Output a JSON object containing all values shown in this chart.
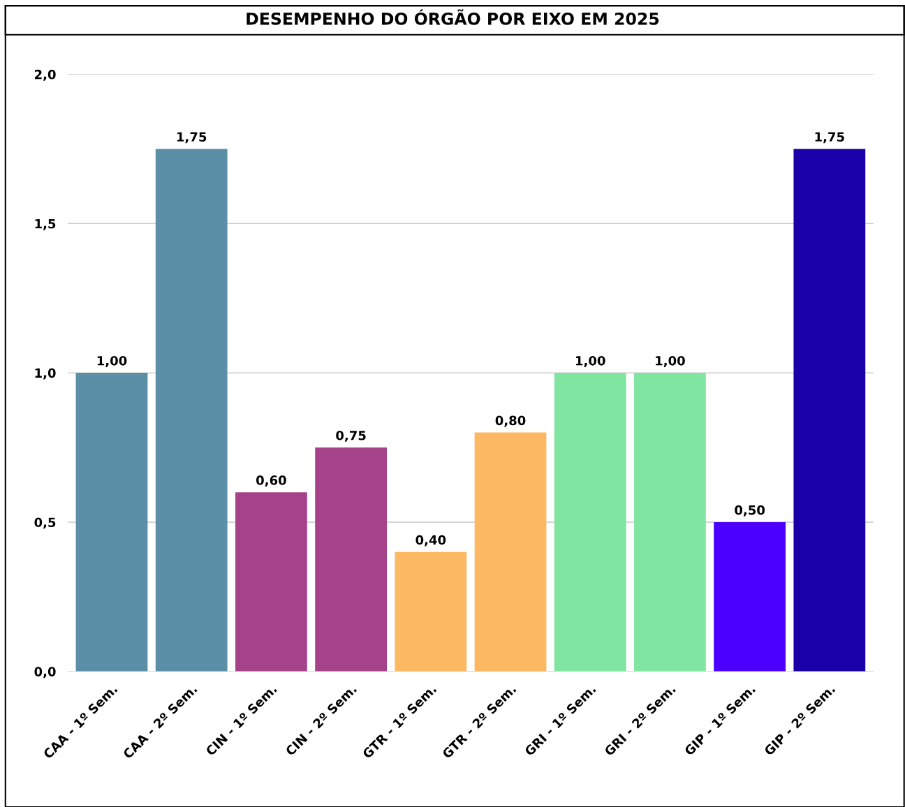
{
  "chart_data": {
    "type": "bar",
    "title": "DESEMPENHO DO ÓRGÃO POR EIXO EM 2025",
    "categories": [
      "CAA - 1º Sem.",
      "CAA - 2º Sem.",
      "CIN - 1º Sem.",
      "CIN - 2º Sem.",
      "GTR - 1º Sem.",
      "GTR - 2º Sem.",
      "GRI - 1º Sem.",
      "GRI - 2º Sem.",
      "GIP - 1º Sem.",
      "GIP - 2º Sem."
    ],
    "values": [
      1.0,
      1.75,
      0.6,
      0.75,
      0.4,
      0.8,
      1.0,
      1.0,
      0.5,
      1.75
    ],
    "colors": [
      "#5b8fa8",
      "#5b8fa8",
      "#a6428a",
      "#a6428a",
      "#fdb863",
      "#fdb863",
      "#80e5a0",
      "#80e5a0",
      "#4b00ff",
      "#1a00a8"
    ],
    "value_labels": [
      "1,00",
      "1,75",
      "0,60",
      "0,75",
      "0,40",
      "0,80",
      "1,00",
      "1,00",
      "0,50",
      "1,75"
    ],
    "ylim": [
      0,
      2
    ],
    "yticks": [
      {
        "value": 0,
        "label": "0,0"
      },
      {
        "value": 0.5,
        "label": "0,5"
      },
      {
        "value": 1,
        "label": "1,0"
      },
      {
        "value": 1.5,
        "label": "1,5"
      },
      {
        "value": 2,
        "label": "2,0"
      }
    ],
    "grid": "y",
    "legend": false
  }
}
